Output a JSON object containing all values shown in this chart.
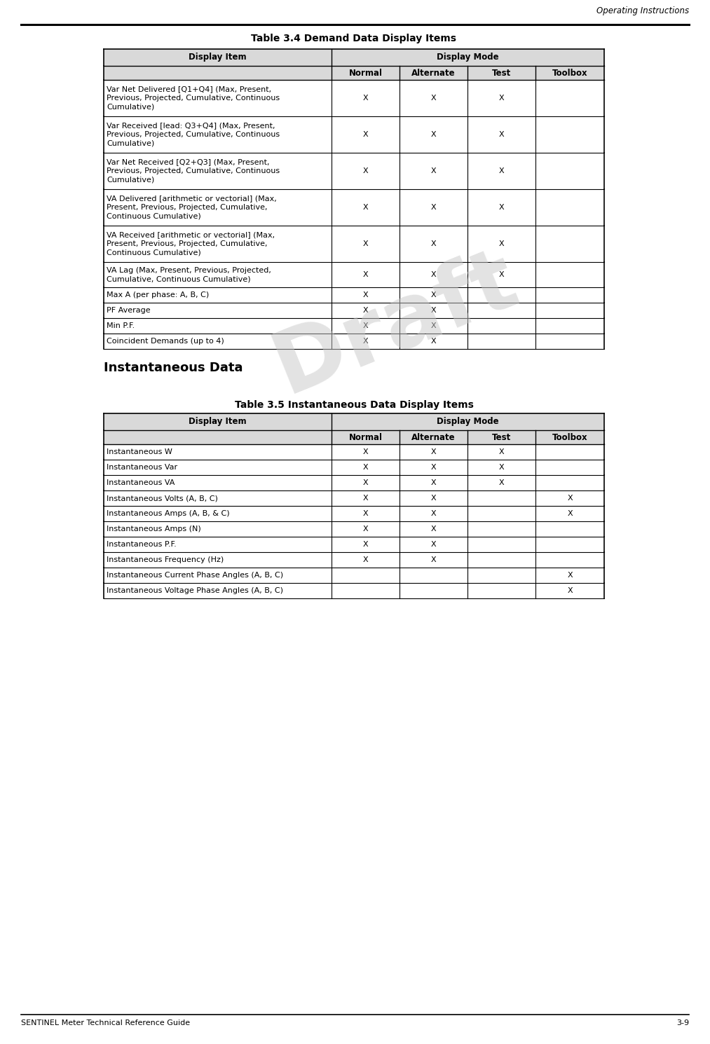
{
  "page_header": "Operating Instructions",
  "page_footer_left": "SENTINEL Meter Technical Reference Guide",
  "page_footer_right": "3-9",
  "table1_title": "Table 3.4 Demand Data Display Items",
  "table1_sub_headers": [
    "Normal",
    "Alternate",
    "Test",
    "Toolbox"
  ],
  "table1_rows": [
    {
      "item": "Var Net Delivered [Q1+Q4] (Max, Present,\nPrevious, Projected, Cumulative, Continuous\nCumulative)",
      "normal": "X",
      "alternate": "X",
      "test": "X",
      "toolbox": ""
    },
    {
      "item": "Var Received [lead: Q3+Q4] (Max, Present,\nPrevious, Projected, Cumulative, Continuous\nCumulative)",
      "normal": "X",
      "alternate": "X",
      "test": "X",
      "toolbox": ""
    },
    {
      "item": "Var Net Received [Q2+Q3] (Max, Present,\nPrevious, Projected, Cumulative, Continuous\nCumulative)",
      "normal": "X",
      "alternate": "X",
      "test": "X",
      "toolbox": ""
    },
    {
      "item": "VA Delivered [arithmetic or vectorial] (Max,\nPresent, Previous, Projected, Cumulative,\nContinuous Cumulative)",
      "normal": "X",
      "alternate": "X",
      "test": "X",
      "toolbox": ""
    },
    {
      "item": "VA Received [arithmetic or vectorial] (Max,\nPresent, Previous, Projected, Cumulative,\nContinuous Cumulative)",
      "normal": "X",
      "alternate": "X",
      "test": "X",
      "toolbox": ""
    },
    {
      "item": "VA Lag (Max, Present, Previous, Projected,\nCumulative, Continuous Cumulative)",
      "normal": "X",
      "alternate": "X",
      "test": "X",
      "toolbox": ""
    },
    {
      "item": "Max A (per phase: A, B, C)",
      "normal": "X",
      "alternate": "X",
      "test": "",
      "toolbox": ""
    },
    {
      "item": "PF Average",
      "normal": "X",
      "alternate": "X",
      "test": "",
      "toolbox": ""
    },
    {
      "item": "Min P.F.",
      "normal": "X",
      "alternate": "X",
      "test": "",
      "toolbox": ""
    },
    {
      "item": "Coincident Demands (up to 4)",
      "normal": "X",
      "alternate": "X",
      "test": "",
      "toolbox": ""
    }
  ],
  "section_header": "Instantaneous Data",
  "table2_title": "Table 3.5 Instantaneous Data Display Items",
  "table2_sub_headers": [
    "Normal",
    "Alternate",
    "Test",
    "Toolbox"
  ],
  "table2_rows": [
    {
      "item": "Instantaneous W",
      "normal": "X",
      "alternate": "X",
      "test": "X",
      "toolbox": ""
    },
    {
      "item": "Instantaneous Var",
      "normal": "X",
      "alternate": "X",
      "test": "X",
      "toolbox": ""
    },
    {
      "item": "Instantaneous VA",
      "normal": "X",
      "alternate": "X",
      "test": "X",
      "toolbox": ""
    },
    {
      "item": "Instantaneous Volts (A, B, C)",
      "normal": "X",
      "alternate": "X",
      "test": "",
      "toolbox": "X"
    },
    {
      "item": "Instantaneous Amps (A, B, & C)",
      "normal": "X",
      "alternate": "X",
      "test": "",
      "toolbox": "X"
    },
    {
      "item": "Instantaneous Amps (N)",
      "normal": "X",
      "alternate": "X",
      "test": "",
      "toolbox": ""
    },
    {
      "item": "Instantaneous P.F.",
      "normal": "X",
      "alternate": "X",
      "test": "",
      "toolbox": ""
    },
    {
      "item": "Instantaneous Frequency (Hz)",
      "normal": "X",
      "alternate": "X",
      "test": "",
      "toolbox": ""
    },
    {
      "item": "Instantaneous Current Phase Angles (A, B, C)",
      "normal": "",
      "alternate": "",
      "test": "",
      "toolbox": "X"
    },
    {
      "item": "Instantaneous Voltage Phase Angles (A, B, C)",
      "normal": "",
      "alternate": "",
      "test": "",
      "toolbox": "X"
    }
  ],
  "draft_text": "Draft",
  "bg_color": "#ffffff",
  "header_bg": "#d9d9d9",
  "border_color": "#000000",
  "text_color": "#000000"
}
